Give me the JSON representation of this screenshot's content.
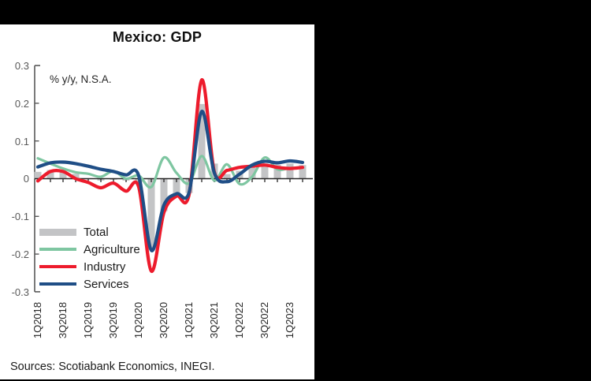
{
  "chart_data": {
    "type": "bar-line-combo",
    "title": "Mexico: GDP",
    "annotation": "% y/y, N.S.A.",
    "ylim": [
      -0.3,
      0.3
    ],
    "y_ticks": [
      "0.3",
      "0.2",
      "0.1",
      "0",
      "-0.1",
      "-0.2",
      "-0.3"
    ],
    "x_tick_labels": [
      "1Q2018",
      "3Q2018",
      "1Q2019",
      "3Q2019",
      "1Q2020",
      "3Q2020",
      "1Q2021",
      "3Q2021",
      "1Q2022",
      "3Q2022",
      "1Q2023"
    ],
    "quarters": [
      "1Q2018",
      "2Q2018",
      "3Q2018",
      "4Q2018",
      "1Q2019",
      "2Q2019",
      "3Q2019",
      "4Q2019",
      "1Q2020",
      "2Q2020",
      "3Q2020",
      "4Q2020",
      "1Q2021",
      "2Q2021",
      "3Q2021",
      "4Q2021",
      "1Q2022",
      "2Q2022",
      "3Q2022",
      "4Q2022",
      "1Q2023",
      "2Q2023"
    ],
    "series": [
      {
        "name": "Total",
        "type": "bar",
        "color": "#c3c4c6",
        "values": [
          0.018,
          0.023,
          0.021,
          0.013,
          0.001,
          -0.005,
          -0.003,
          -0.005,
          -0.01,
          -0.188,
          -0.086,
          -0.048,
          -0.038,
          0.198,
          0.04,
          0.012,
          0.021,
          0.029,
          0.04,
          0.037,
          0.04,
          0.036
        ]
      },
      {
        "name": "Agriculture",
        "type": "line",
        "color": "#7ec6a1",
        "values": [
          0.054,
          0.04,
          0.027,
          0.017,
          0.013,
          0.005,
          0.02,
          0.0,
          0.008,
          -0.022,
          0.056,
          0.015,
          -0.012,
          0.06,
          -0.005,
          0.038,
          -0.014,
          0.005,
          0.056,
          0.025,
          0.028,
          0.03
        ]
      },
      {
        "name": "Industry",
        "type": "line",
        "color": "#ed1b2c",
        "values": [
          -0.006,
          0.019,
          0.019,
          0.0,
          -0.01,
          -0.024,
          -0.012,
          -0.033,
          -0.022,
          -0.245,
          -0.09,
          -0.046,
          -0.042,
          0.262,
          0.018,
          0.022,
          0.03,
          0.033,
          0.036,
          0.03,
          0.027,
          0.03
        ]
      },
      {
        "name": "Services",
        "type": "line",
        "color": "#1f4e86",
        "values": [
          0.031,
          0.042,
          0.044,
          0.04,
          0.033,
          0.025,
          0.019,
          0.01,
          0.008,
          -0.19,
          -0.07,
          -0.04,
          -0.036,
          0.178,
          0.015,
          -0.008,
          0.012,
          0.036,
          0.046,
          0.042,
          0.047,
          0.043
        ]
      }
    ],
    "legend_position": "lower-left",
    "grid": false,
    "source_note": "Sources: Scotiabank Economics, INEGI."
  }
}
